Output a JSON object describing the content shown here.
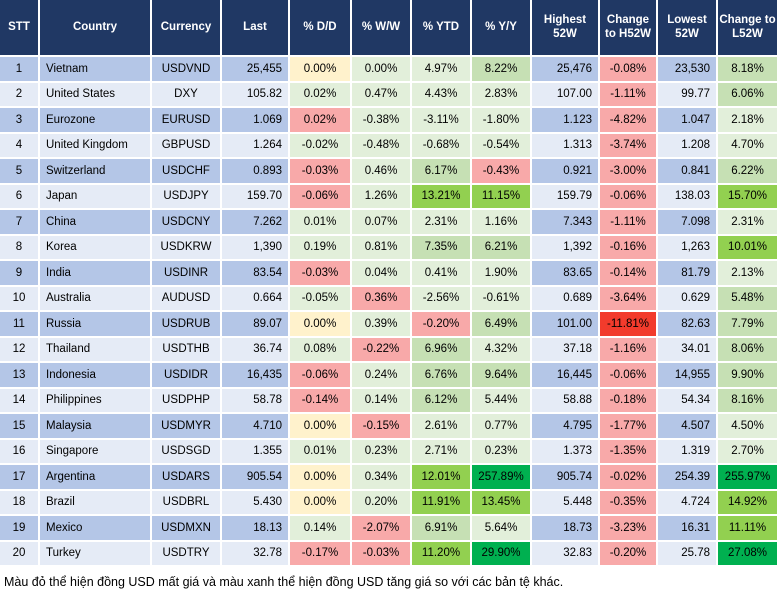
{
  "chart_data": {
    "type": "table",
    "title": "USD exchange rate table vs major currencies",
    "columns": [
      "STT",
      "Country",
      "Currency",
      "Last",
      "% D/D",
      "% W/W",
      "% YTD",
      "% Y/Y",
      "Highest 52W",
      "Change to H52W",
      "Lowest 52W",
      "Change to L52W"
    ],
    "rows": [
      [
        "1",
        "Vietnam",
        "USDVND",
        "25,455",
        "0.00%",
        "0.00%",
        "4.97%",
        "8.22%",
        "25,476",
        "-0.08%",
        "23,530",
        "8.18%"
      ],
      [
        "2",
        "United States",
        "DXY",
        "105.82",
        "0.02%",
        "0.47%",
        "4.43%",
        "2.83%",
        "107.00",
        "-1.11%",
        "99.77",
        "6.06%"
      ],
      [
        "3",
        "Eurozone",
        "EURUSD",
        "1.069",
        "0.02%",
        "-0.38%",
        "-3.11%",
        "-1.80%",
        "1.123",
        "-4.82%",
        "1.047",
        "2.18%"
      ],
      [
        "4",
        "United Kingdom",
        "GBPUSD",
        "1.264",
        "-0.02%",
        "-0.48%",
        "-0.68%",
        "-0.54%",
        "1.313",
        "-3.74%",
        "1.208",
        "4.70%"
      ],
      [
        "5",
        "Switzerland",
        "USDCHF",
        "0.893",
        "-0.03%",
        "0.46%",
        "6.17%",
        "-0.43%",
        "0.921",
        "-3.00%",
        "0.841",
        "6.22%"
      ],
      [
        "6",
        "Japan",
        "USDJPY",
        "159.70",
        "-0.06%",
        "1.26%",
        "13.21%",
        "11.15%",
        "159.79",
        "-0.06%",
        "138.03",
        "15.70%"
      ],
      [
        "7",
        "China",
        "USDCNY",
        "7.262",
        "0.01%",
        "0.07%",
        "2.31%",
        "1.16%",
        "7.343",
        "-1.11%",
        "7.098",
        "2.31%"
      ],
      [
        "8",
        "Korea",
        "USDKRW",
        "1,390",
        "0.19%",
        "0.81%",
        "7.35%",
        "6.21%",
        "1,392",
        "-0.16%",
        "1,263",
        "10.01%"
      ],
      [
        "9",
        "India",
        "USDINR",
        "83.54",
        "-0.03%",
        "0.04%",
        "0.41%",
        "1.90%",
        "83.65",
        "-0.14%",
        "81.79",
        "2.13%"
      ],
      [
        "10",
        "Australia",
        "AUDUSD",
        "0.664",
        "-0.05%",
        "0.36%",
        "-2.56%",
        "-0.61%",
        "0.689",
        "-3.64%",
        "0.629",
        "5.48%"
      ],
      [
        "11",
        "Russia",
        "USDRUB",
        "89.07",
        "0.00%",
        "0.39%",
        "-0.20%",
        "6.49%",
        "101.00",
        "-11.81%",
        "82.63",
        "7.79%"
      ],
      [
        "12",
        "Thailand",
        "USDTHB",
        "36.74",
        "0.08%",
        "-0.22%",
        "6.96%",
        "4.32%",
        "37.18",
        "-1.16%",
        "34.01",
        "8.06%"
      ],
      [
        "13",
        "Indonesia",
        "USDIDR",
        "16,435",
        "-0.06%",
        "0.24%",
        "6.76%",
        "9.64%",
        "16,445",
        "-0.06%",
        "14,955",
        "9.90%"
      ],
      [
        "14",
        "Philippines",
        "USDPHP",
        "58.78",
        "-0.14%",
        "0.14%",
        "6.12%",
        "5.44%",
        "58.88",
        "-0.18%",
        "54.34",
        "8.16%"
      ],
      [
        "15",
        "Malaysia",
        "USDMYR",
        "4.710",
        "0.00%",
        "-0.15%",
        "2.61%",
        "0.77%",
        "4.795",
        "-1.77%",
        "4.507",
        "4.50%"
      ],
      [
        "16",
        "Singapore",
        "USDSGD",
        "1.355",
        "0.01%",
        "0.23%",
        "2.71%",
        "0.23%",
        "1.373",
        "-1.35%",
        "1.319",
        "2.70%"
      ],
      [
        "17",
        "Argentina",
        "USDARS",
        "905.54",
        "0.00%",
        "0.34%",
        "12.01%",
        "257.89%",
        "905.74",
        "-0.02%",
        "254.39",
        "255.97%"
      ],
      [
        "18",
        "Brazil",
        "USDBRL",
        "5.430",
        "0.00%",
        "0.20%",
        "11.91%",
        "13.45%",
        "5.448",
        "-0.35%",
        "4.724",
        "14.92%"
      ],
      [
        "19",
        "Mexico",
        "USDMXN",
        "18.13",
        "0.14%",
        "-2.07%",
        "6.91%",
        "5.64%",
        "18.73",
        "-3.23%",
        "16.31",
        "11.11%"
      ],
      [
        "20",
        "Turkey",
        "USDTRY",
        "32.78",
        "-0.17%",
        "-0.03%",
        "11.20%",
        "29.90%",
        "32.83",
        "-0.20%",
        "25.78",
        "27.08%"
      ]
    ],
    "cell_colors": [
      [
        "",
        "",
        "",
        "",
        "y",
        "g1",
        "g1",
        "g2",
        "",
        "r1",
        "",
        "g2"
      ],
      [
        "",
        "",
        "",
        "",
        "g1",
        "g1",
        "g1",
        "g1",
        "",
        "r1",
        "",
        "g2"
      ],
      [
        "",
        "",
        "",
        "",
        "r1",
        "g1",
        "g1",
        "g1",
        "",
        "r1",
        "",
        "g1"
      ],
      [
        "",
        "",
        "",
        "",
        "g1",
        "g1",
        "g1",
        "g1",
        "",
        "r1",
        "",
        "g1"
      ],
      [
        "",
        "",
        "",
        "",
        "r1",
        "g1",
        "g2",
        "r1",
        "",
        "r1",
        "",
        "g2"
      ],
      [
        "",
        "",
        "",
        "",
        "r1",
        "g1",
        "g3",
        "g3",
        "",
        "r1",
        "",
        "g3"
      ],
      [
        "",
        "",
        "",
        "",
        "g1",
        "g1",
        "g1",
        "g1",
        "",
        "r1",
        "",
        "g1"
      ],
      [
        "",
        "",
        "",
        "",
        "g1",
        "g1",
        "g2",
        "g2",
        "",
        "r1",
        "",
        "g3"
      ],
      [
        "",
        "",
        "",
        "",
        "r1",
        "g1",
        "g1",
        "g1",
        "",
        "r1",
        "",
        "g1"
      ],
      [
        "",
        "",
        "",
        "",
        "g1",
        "r1",
        "g1",
        "g1",
        "",
        "r1",
        "",
        "g2"
      ],
      [
        "",
        "",
        "",
        "",
        "y",
        "g1",
        "r1",
        "g2",
        "",
        "r2",
        "",
        "g2"
      ],
      [
        "",
        "",
        "",
        "",
        "g1",
        "r1",
        "g2",
        "g1",
        "",
        "r1",
        "",
        "g2"
      ],
      [
        "",
        "",
        "",
        "",
        "r1",
        "g1",
        "g2",
        "g2",
        "",
        "r1",
        "",
        "g2"
      ],
      [
        "",
        "",
        "",
        "",
        "r1",
        "g1",
        "g2",
        "g1",
        "",
        "r1",
        "",
        "g2"
      ],
      [
        "",
        "",
        "",
        "",
        "y",
        "r1",
        "g1",
        "g1",
        "",
        "r1",
        "",
        "g1"
      ],
      [
        "",
        "",
        "",
        "",
        "g1",
        "g1",
        "g1",
        "g1",
        "",
        "r1",
        "",
        "g1"
      ],
      [
        "",
        "",
        "",
        "",
        "y",
        "g1",
        "g3",
        "g4",
        "",
        "r1",
        "",
        "g4"
      ],
      [
        "",
        "",
        "",
        "",
        "y",
        "g1",
        "g3",
        "g3",
        "",
        "r1",
        "",
        "g3"
      ],
      [
        "",
        "",
        "",
        "",
        "g1",
        "r1",
        "g2",
        "g1",
        "",
        "r1",
        "",
        "g3"
      ],
      [
        "",
        "",
        "",
        "",
        "r1",
        "r1",
        "g3",
        "g4",
        "",
        "r1",
        "",
        "g4"
      ]
    ],
    "legend_position": "none",
    "grid": true
  },
  "footer": {
    "note": "Màu đỏ thể hiện đồng USD mất giá và màu xanh thể hiện đồng USD tăng giá so với các bản tệ khác."
  },
  "palette": {
    "header_bg": "#203864",
    "header_text": "#ffffff",
    "row_odd": "#B4C6E7",
    "row_even": "#E5EBF6",
    "neutral_yellow": "#FFF2CC",
    "green_light": "#E2EFDA",
    "green_medium": "#C6E0B4",
    "green_bright": "#92D050",
    "green_strong": "#00B050",
    "red_light": "#F8A9A9",
    "red_strong": "#F23B2C",
    "data_text": "#000000"
  }
}
